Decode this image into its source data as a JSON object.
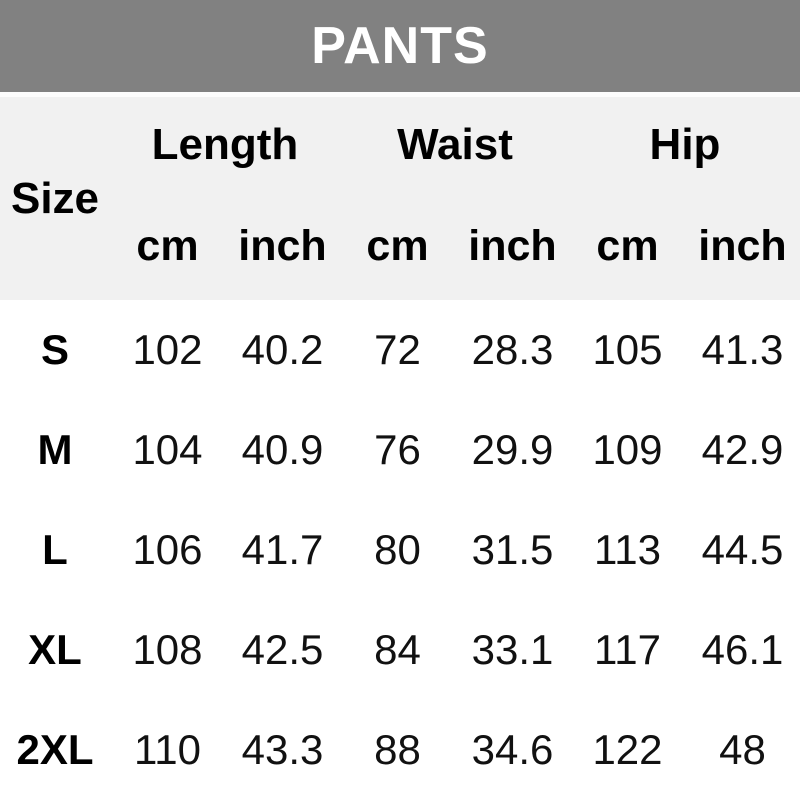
{
  "header": {
    "title": "PANTS"
  },
  "table": {
    "size_label": "Size",
    "groups": [
      "Length",
      "Waist",
      "Hip"
    ],
    "units": [
      "cm",
      "inch",
      "cm",
      "inch",
      "cm",
      "inch"
    ],
    "rows": [
      {
        "size": "S",
        "values": [
          "102",
          "40.2",
          "72",
          "28.3",
          "105",
          "41.3"
        ]
      },
      {
        "size": "M",
        "values": [
          "104",
          "40.9",
          "76",
          "29.9",
          "109",
          "42.9"
        ]
      },
      {
        "size": "L",
        "values": [
          "106",
          "41.7",
          "80",
          "31.5",
          "113",
          "44.5"
        ]
      },
      {
        "size": "XL",
        "values": [
          "108",
          "42.5",
          "84",
          "33.1",
          "117",
          "46.1"
        ]
      },
      {
        "size": "2XL",
        "values": [
          "110",
          "43.3",
          "88",
          "34.6",
          "122",
          "48"
        ]
      }
    ]
  },
  "colors": {
    "banner_bg": "#818181",
    "banner_text": "#ffffff",
    "header_bg": "#f1f1f1",
    "body_bg": "#ffffff",
    "text": "#000000"
  },
  "chart_data": {
    "type": "table",
    "title": "PANTS",
    "columns": [
      "Size",
      "Length cm",
      "Length inch",
      "Waist cm",
      "Waist inch",
      "Hip cm",
      "Hip inch"
    ],
    "column_groups": [
      {
        "label": "Length",
        "span": 2
      },
      {
        "label": "Waist",
        "span": 2
      },
      {
        "label": "Hip",
        "span": 2
      }
    ],
    "rows": [
      [
        "S",
        102,
        40.2,
        72,
        28.3,
        105,
        41.3
      ],
      [
        "M",
        104,
        40.9,
        76,
        29.9,
        109,
        42.9
      ],
      [
        "L",
        106,
        41.7,
        80,
        31.5,
        113,
        44.5
      ],
      [
        "XL",
        108,
        42.5,
        84,
        33.1,
        117,
        46.1
      ],
      [
        "2XL",
        110,
        43.3,
        88,
        34.6,
        122,
        48
      ]
    ]
  }
}
